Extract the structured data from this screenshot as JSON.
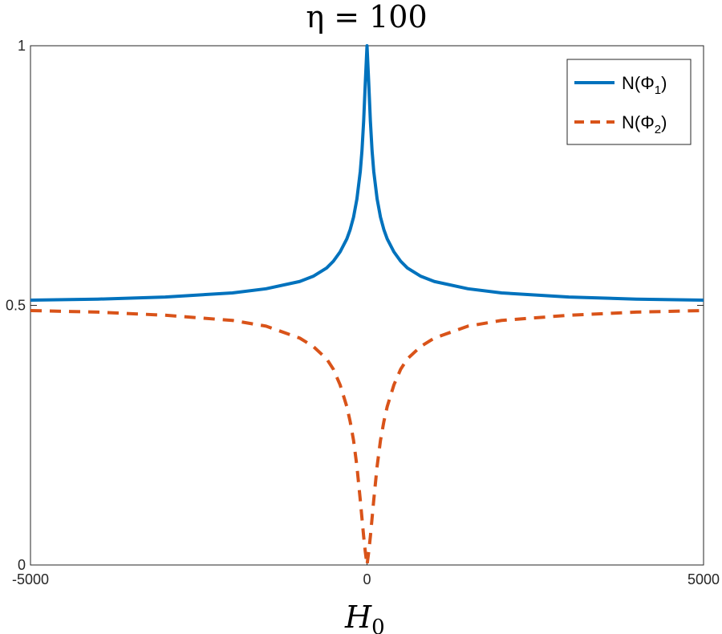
{
  "chart_data": {
    "type": "line",
    "title": "η = 100",
    "xlabel": "H",
    "xlabel_subscript": "0",
    "ylabel": "",
    "xlim": [
      -5000,
      5000
    ],
    "ylim": [
      0,
      1
    ],
    "x_ticks": [
      -5000,
      0,
      5000
    ],
    "x_tick_labels": [
      "-5000",
      "0",
      "5000"
    ],
    "y_ticks": [
      0,
      0.5,
      1
    ],
    "y_tick_labels": [
      "0",
      "0.5",
      "1"
    ],
    "grid": false,
    "legend_placement": "top-right",
    "series": [
      {
        "name": "N(Φ",
        "name_subscript": "1",
        "name_suffix": ")",
        "color": "#0072BD",
        "style": "solid",
        "x": [
          -5000,
          -4000,
          -3000,
          -2000,
          -1500,
          -1000,
          -800,
          -600,
          -500,
          -400,
          -300,
          -250,
          -200,
          -150,
          -100,
          -75,
          -50,
          -25,
          0,
          25,
          50,
          75,
          100,
          150,
          200,
          250,
          300,
          400,
          500,
          600,
          800,
          1000,
          1500,
          2000,
          3000,
          4000,
          5000
        ],
        "y": [
          0.51,
          0.512,
          0.516,
          0.524,
          0.532,
          0.546,
          0.556,
          0.572,
          0.585,
          0.603,
          0.628,
          0.646,
          0.67,
          0.705,
          0.758,
          0.798,
          0.855,
          0.93,
          1.0,
          0.93,
          0.855,
          0.798,
          0.758,
          0.705,
          0.67,
          0.646,
          0.628,
          0.603,
          0.585,
          0.572,
          0.556,
          0.546,
          0.532,
          0.524,
          0.516,
          0.512,
          0.51
        ]
      },
      {
        "name": "N(Φ",
        "name_subscript": "2",
        "name_suffix": ")",
        "color": "#D95319",
        "style": "dashed",
        "x": [
          -5000,
          -4000,
          -3000,
          -2000,
          -1500,
          -1000,
          -800,
          -600,
          -500,
          -400,
          -300,
          -250,
          -200,
          -150,
          -100,
          -75,
          -50,
          -25,
          0,
          25,
          50,
          75,
          100,
          150,
          200,
          250,
          300,
          400,
          500,
          600,
          800,
          1000,
          1500,
          2000,
          3000,
          4000,
          5000
        ],
        "y": [
          0.49,
          0.487,
          0.481,
          0.471,
          0.46,
          0.437,
          0.421,
          0.397,
          0.377,
          0.347,
          0.305,
          0.276,
          0.24,
          0.19,
          0.125,
          0.09,
          0.055,
          0.025,
          0.0,
          0.025,
          0.055,
          0.09,
          0.125,
          0.19,
          0.24,
          0.276,
          0.305,
          0.347,
          0.377,
          0.397,
          0.421,
          0.437,
          0.46,
          0.471,
          0.481,
          0.487,
          0.49
        ]
      }
    ]
  }
}
